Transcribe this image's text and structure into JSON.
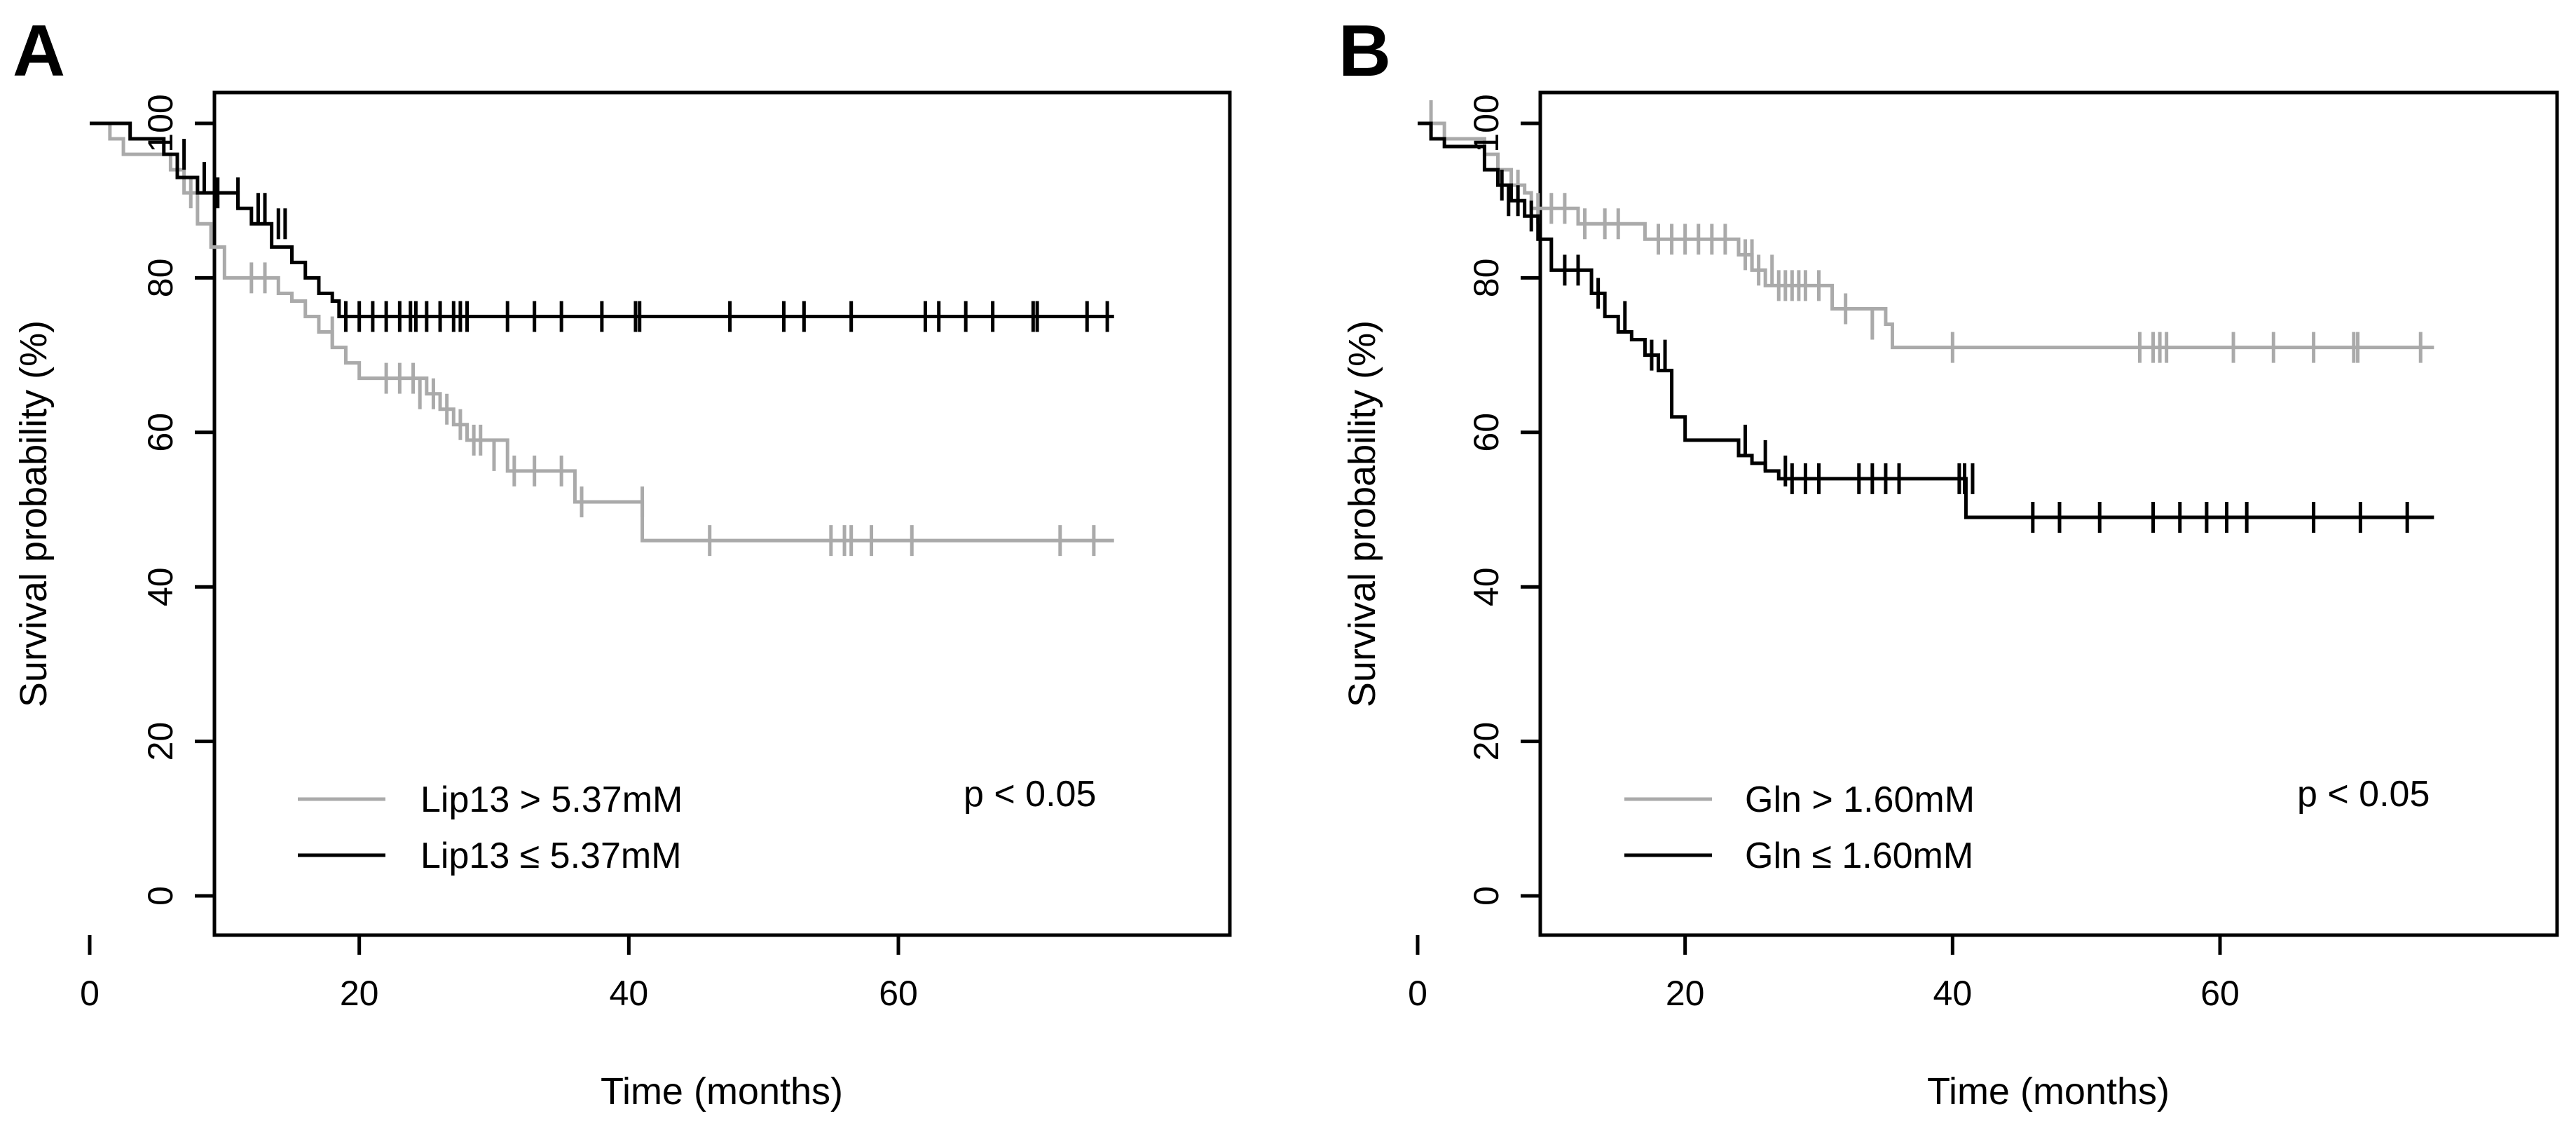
{
  "chart_data": [
    {
      "type": "line",
      "panel": "A",
      "xlabel": "Time (months)",
      "ylabel": "Survival probability (%)",
      "xlim": [
        0,
        77
      ],
      "ylim": [
        0,
        100
      ],
      "xticks": [
        0,
        20,
        40,
        60
      ],
      "yticks": [
        0,
        20,
        40,
        60,
        80,
        100
      ],
      "legend_position": "bottom-left",
      "annotation": "p < 0.05",
      "series": [
        {
          "name": "Lip13 > 5.37mM",
          "color": "#aaaaaa",
          "steps": [
            [
              0,
              100
            ],
            [
              1.5,
              98
            ],
            [
              2.5,
              96
            ],
            [
              6,
              94
            ],
            [
              7,
              91
            ],
            [
              8,
              87
            ],
            [
              9,
              84
            ],
            [
              10,
              80
            ],
            [
              14,
              78
            ],
            [
              15,
              77
            ],
            [
              16,
              75
            ],
            [
              17,
              73
            ],
            [
              18,
              71
            ],
            [
              19,
              69
            ],
            [
              20,
              67
            ],
            [
              25,
              65
            ],
            [
              26,
              63
            ],
            [
              27,
              61
            ],
            [
              28,
              59
            ],
            [
              31,
              55
            ],
            [
              36,
              51
            ],
            [
              41,
              46
            ],
            [
              76,
              46
            ]
          ],
          "censored": [
            [
              7.5,
              91
            ],
            [
              12,
              80
            ],
            [
              13,
              80
            ],
            [
              18,
              73
            ],
            [
              22,
              67
            ],
            [
              23,
              67
            ],
            [
              24,
              67
            ],
            [
              24.5,
              65
            ],
            [
              25.5,
              65
            ],
            [
              26.5,
              63
            ],
            [
              27.5,
              61
            ],
            [
              28.5,
              59
            ],
            [
              29,
              59
            ],
            [
              30,
              57
            ],
            [
              31.5,
              55
            ],
            [
              33,
              55
            ],
            [
              35,
              55
            ],
            [
              36.5,
              51
            ],
            [
              41,
              51
            ],
            [
              46,
              46
            ],
            [
              55,
              46
            ],
            [
              56,
              46
            ],
            [
              56.5,
              46
            ],
            [
              58,
              46
            ],
            [
              61,
              46
            ],
            [
              72,
              46
            ],
            [
              74.5,
              46
            ]
          ]
        },
        {
          "name": "Lip13 ≤ 5.37mM",
          "color": "#000000",
          "steps": [
            [
              0,
              100
            ],
            [
              3,
              98
            ],
            [
              5.5,
              96
            ],
            [
              6.5,
              93
            ],
            [
              8,
              91
            ],
            [
              11,
              89
            ],
            [
              12,
              87
            ],
            [
              13.5,
              84
            ],
            [
              15,
              82
            ],
            [
              16,
              80
            ],
            [
              17,
              78
            ],
            [
              18,
              77
            ],
            [
              18.5,
              75
            ],
            [
              76,
              75
            ]
          ],
          "censored": [
            [
              7,
              96
            ],
            [
              8.5,
              93
            ],
            [
              9.5,
              91
            ],
            [
              11,
              91
            ],
            [
              12.5,
              89
            ],
            [
              13,
              89
            ],
            [
              14,
              87
            ],
            [
              14.5,
              87
            ],
            [
              19,
              75
            ],
            [
              20,
              75
            ],
            [
              21,
              75
            ],
            [
              22,
              75
            ],
            [
              23,
              75
            ],
            [
              23.8,
              75
            ],
            [
              24.2,
              75
            ],
            [
              25,
              75
            ],
            [
              26,
              75
            ],
            [
              27,
              75
            ],
            [
              27.5,
              75
            ],
            [
              28,
              75
            ],
            [
              31,
              75
            ],
            [
              33,
              75
            ],
            [
              35,
              75
            ],
            [
              38,
              75
            ],
            [
              40.5,
              75
            ],
            [
              40.8,
              75
            ],
            [
              47.5,
              75
            ],
            [
              51.5,
              75
            ],
            [
              53,
              75
            ],
            [
              56.5,
              75
            ],
            [
              62,
              75
            ],
            [
              63,
              75
            ],
            [
              65,
              75
            ],
            [
              67,
              75
            ],
            [
              70,
              75
            ],
            [
              70.3,
              75
            ],
            [
              74,
              75
            ],
            [
              75.5,
              75
            ]
          ]
        }
      ]
    },
    {
      "type": "line",
      "panel": "B",
      "xlabel": "Time (months)",
      "ylabel": "Survival probability (%)",
      "xlim": [
        0,
        77
      ],
      "ylim": [
        0,
        100
      ],
      "xticks": [
        0,
        20,
        40,
        60
      ],
      "yticks": [
        0,
        20,
        40,
        60,
        80,
        100
      ],
      "legend_position": "bottom-left",
      "annotation": "p < 0.05",
      "series": [
        {
          "name": "Gln > 1.60mM",
          "color": "#aaaaaa",
          "steps": [
            [
              0,
              100
            ],
            [
              2,
              98
            ],
            [
              5,
              96
            ],
            [
              6,
              94
            ],
            [
              7,
              92
            ],
            [
              8,
              91
            ],
            [
              8.5,
              89
            ],
            [
              12,
              87
            ],
            [
              17,
              85
            ],
            [
              24,
              83
            ],
            [
              25,
              81
            ],
            [
              26,
              79
            ],
            [
              31,
              76
            ],
            [
              35,
              74
            ],
            [
              35.5,
              71
            ],
            [
              76,
              71
            ]
          ],
          "censored": [
            [
              1,
              101
            ],
            [
              7.5,
              92
            ],
            [
              9,
              89
            ],
            [
              10,
              89
            ],
            [
              11,
              89
            ],
            [
              12.5,
              87
            ],
            [
              14,
              87
            ],
            [
              15,
              87
            ],
            [
              18,
              85
            ],
            [
              19,
              85
            ],
            [
              20,
              85
            ],
            [
              21,
              85
            ],
            [
              22,
              85
            ],
            [
              23,
              85
            ],
            [
              24.5,
              83
            ],
            [
              25,
              83
            ],
            [
              25.5,
              81
            ],
            [
              26.5,
              81
            ],
            [
              27,
              79
            ],
            [
              27.5,
              79
            ],
            [
              28,
              79
            ],
            [
              28.5,
              79
            ],
            [
              29,
              79
            ],
            [
              30,
              79
            ],
            [
              32,
              76
            ],
            [
              34,
              74
            ],
            [
              40,
              71
            ],
            [
              54,
              71
            ],
            [
              55,
              71
            ],
            [
              55.5,
              71
            ],
            [
              56,
              71
            ],
            [
              61,
              71
            ],
            [
              64,
              71
            ],
            [
              67,
              71
            ],
            [
              70,
              71
            ],
            [
              70.3,
              71
            ],
            [
              75,
              71
            ]
          ]
        },
        {
          "name": "Gln ≤ 1.60mM",
          "color": "#000000",
          "steps": [
            [
              0,
              100
            ],
            [
              1,
              98
            ],
            [
              2,
              97
            ],
            [
              5,
              94
            ],
            [
              6,
              92
            ],
            [
              7,
              90
            ],
            [
              8,
              88
            ],
            [
              9,
              85
            ],
            [
              10,
              81
            ],
            [
              13,
              78
            ],
            [
              14,
              75
            ],
            [
              15,
              73
            ],
            [
              16,
              72
            ],
            [
              17,
              70
            ],
            [
              18,
              68
            ],
            [
              19,
              62
            ],
            [
              20,
              59
            ],
            [
              24,
              57
            ],
            [
              25,
              56
            ],
            [
              26,
              55
            ],
            [
              27,
              54
            ],
            [
              41,
              49
            ],
            [
              76,
              49
            ]
          ],
          "censored": [
            [
              6.3,
              92
            ],
            [
              6.8,
              90
            ],
            [
              7.5,
              90
            ],
            [
              8.5,
              88
            ],
            [
              11,
              81
            ],
            [
              12,
              81
            ],
            [
              13.5,
              78
            ],
            [
              15.5,
              75
            ],
            [
              17.5,
              70
            ],
            [
              18.5,
              70
            ],
            [
              24.5,
              59
            ],
            [
              26,
              57
            ],
            [
              27.5,
              55
            ],
            [
              28,
              54
            ],
            [
              29,
              54
            ],
            [
              30,
              54
            ],
            [
              33,
              54
            ],
            [
              34,
              54
            ],
            [
              35,
              54
            ],
            [
              36,
              54
            ],
            [
              40.5,
              54
            ],
            [
              40.9,
              54
            ],
            [
              41.5,
              54
            ],
            [
              46,
              49
            ],
            [
              48,
              49
            ],
            [
              51,
              49
            ],
            [
              55,
              49
            ],
            [
              57,
              49
            ],
            [
              59,
              49
            ],
            [
              60.5,
              49
            ],
            [
              62,
              49
            ],
            [
              67,
              49
            ],
            [
              70.5,
              49
            ],
            [
              74,
              49
            ]
          ]
        }
      ]
    }
  ]
}
